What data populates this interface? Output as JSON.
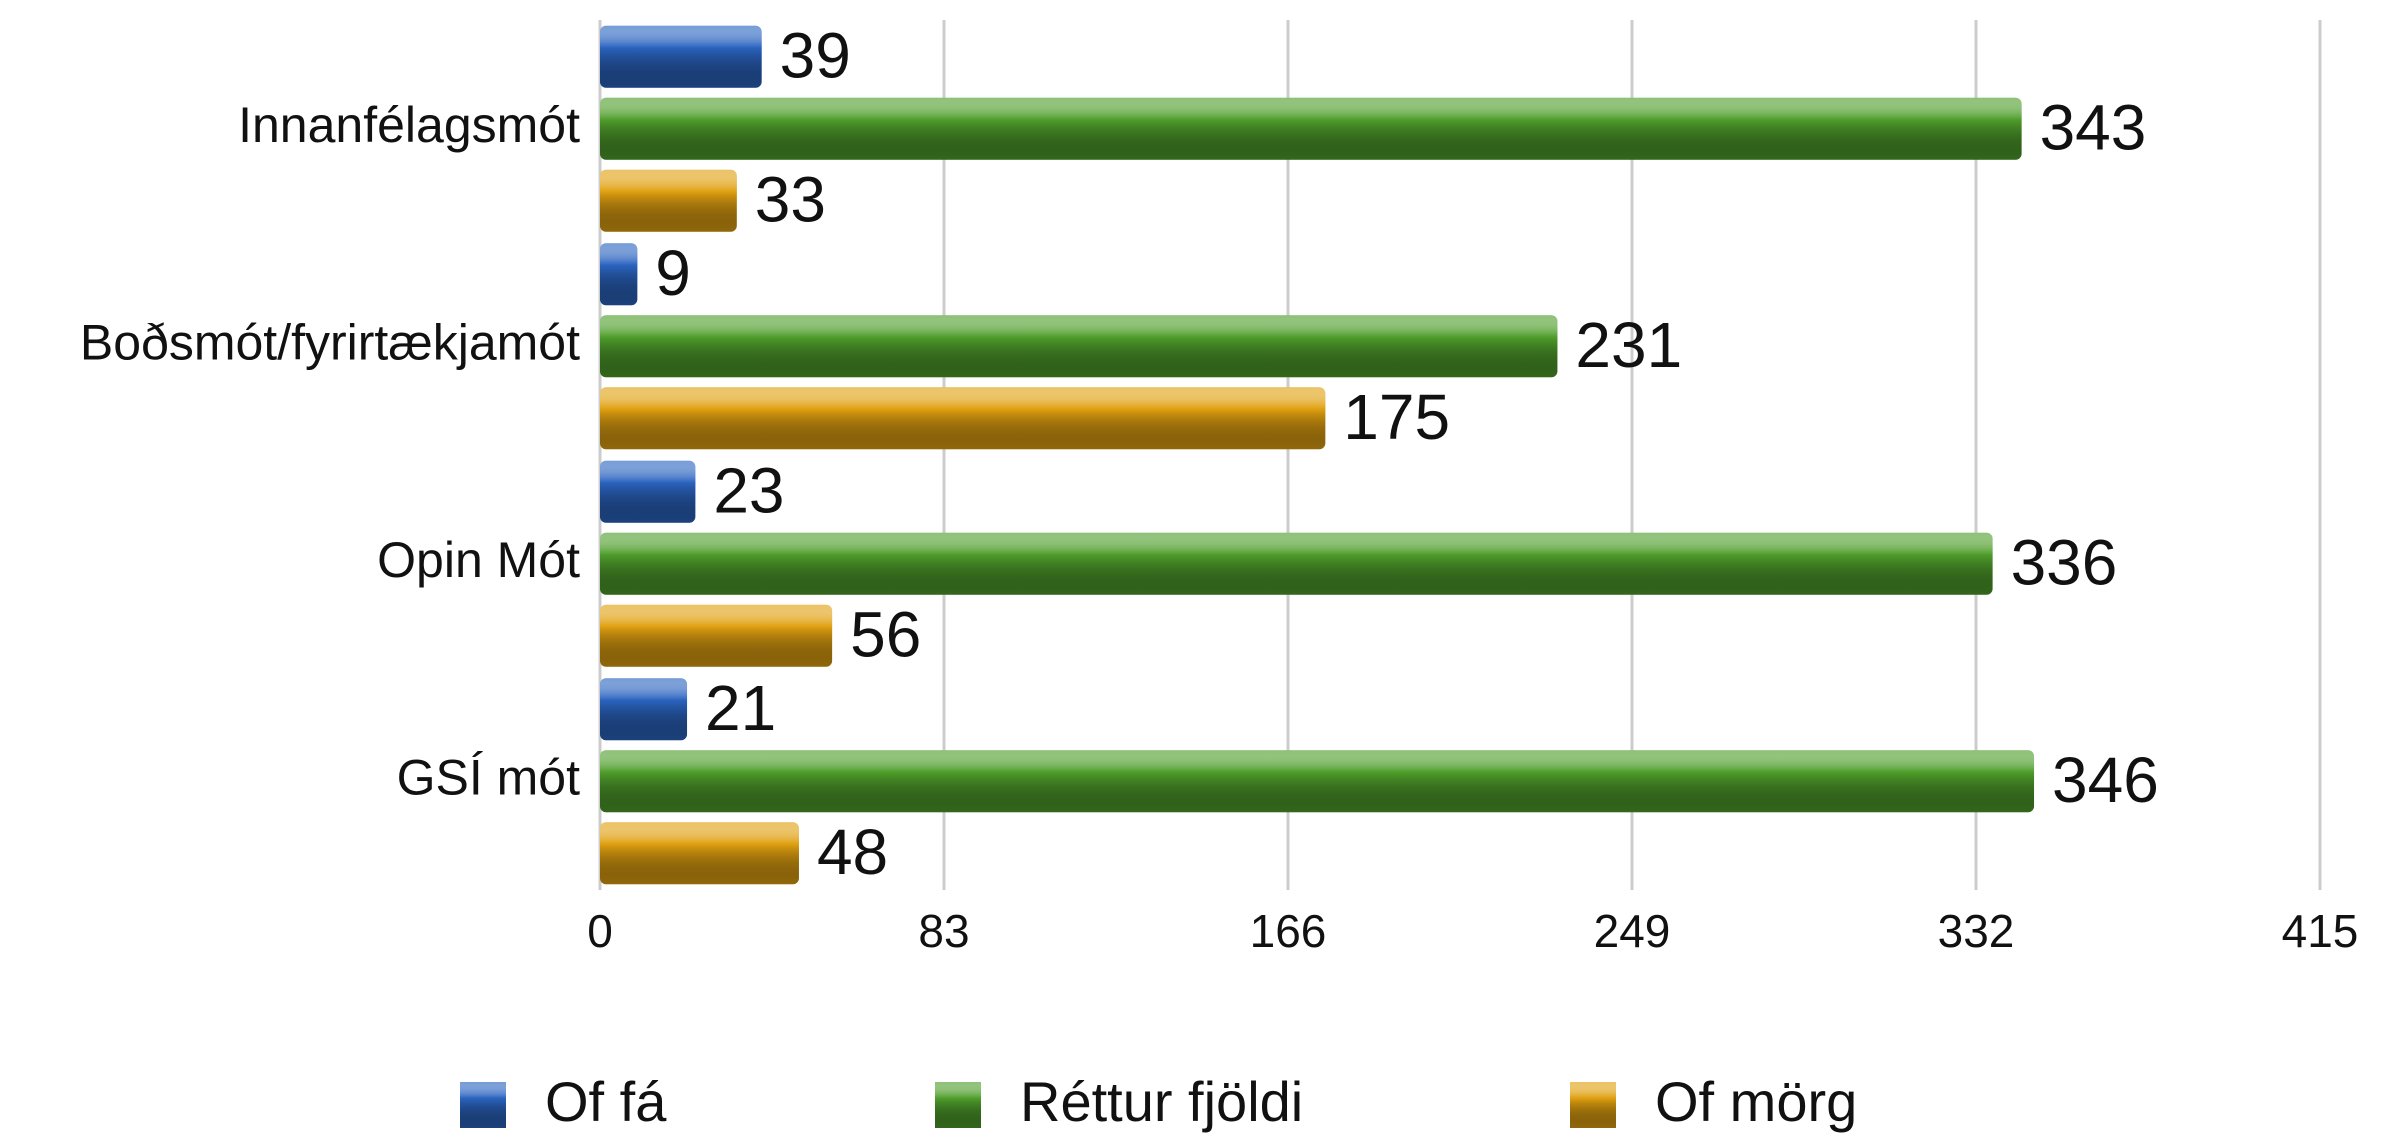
{
  "chart_data": {
    "type": "bar",
    "orientation": "horizontal",
    "categories": [
      "Innanfélagsmót",
      "Boðsmót/fyrirtækjamót",
      "Opin Mót",
      "GSÍ mót"
    ],
    "series": [
      {
        "name": "Of fá",
        "color": "#2b64c0",
        "values": [
          39,
          9,
          23,
          21
        ]
      },
      {
        "name": "Réttur fjöldi",
        "color": "#4f9e2b",
        "values": [
          343,
          231,
          336,
          346
        ]
      },
      {
        "name": "Of mörg",
        "color": "#e0a010",
        "values": [
          33,
          175,
          56,
          48
        ]
      }
    ],
    "xlim": [
      0,
      415
    ],
    "xticks": [
      0,
      83,
      166,
      249,
      332,
      415
    ],
    "grid": true,
    "legend": "bottom"
  }
}
